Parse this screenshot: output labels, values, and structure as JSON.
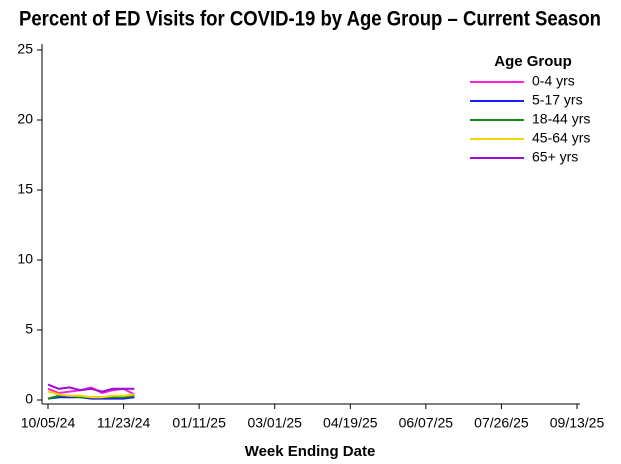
{
  "chart_data": {
    "type": "line",
    "title": "Percent of ED Visits for COVID-19 by Age Group – Current Season",
    "x_label": "Week Ending Date",
    "legend_title": "Age Group",
    "legend_position": "upper right",
    "x": [
      "10/05/24",
      "10/12/24",
      "10/19/24",
      "10/26/24",
      "11/02/24",
      "11/09/24",
      "11/16/24",
      "11/23/24",
      "11/30/24"
    ],
    "xlim": [
      "10/05/24",
      "09/13/25"
    ],
    "xticks": [
      "10/05/24",
      "11/23/24",
      "01/11/25",
      "03/01/25",
      "04/19/25",
      "06/07/25",
      "07/26/25",
      "09/13/25"
    ],
    "ylim": [
      0,
      25
    ],
    "yticks": [
      0,
      5,
      10,
      15,
      20,
      25
    ],
    "series": [
      {
        "name": "0-4 yrs",
        "color": "#ff22dd",
        "values": [
          0.8,
          0.5,
          0.6,
          0.7,
          0.9,
          0.5,
          0.7,
          0.8,
          0.4
        ]
      },
      {
        "name": "5-17 yrs",
        "color": "#1a1aff",
        "values": [
          0.1,
          0.2,
          0.2,
          0.2,
          0.1,
          0.1,
          0.1,
          0.1,
          0.2
        ]
      },
      {
        "name": "18-44 yrs",
        "color": "#138a13",
        "values": [
          0.1,
          0.3,
          0.3,
          0.2,
          0.2,
          0.2,
          0.2,
          0.2,
          0.3
        ]
      },
      {
        "name": "45-64 yrs",
        "color": "#f2d600",
        "values": [
          0.6,
          0.4,
          0.3,
          0.3,
          0.2,
          0.2,
          0.3,
          0.3,
          0.4
        ]
      },
      {
        "name": "65+ yrs",
        "color": "#9a0fd0",
        "values": [
          1.1,
          0.8,
          0.9,
          0.7,
          0.8,
          0.6,
          0.8,
          0.8,
          0.8
        ]
      }
    ]
  }
}
